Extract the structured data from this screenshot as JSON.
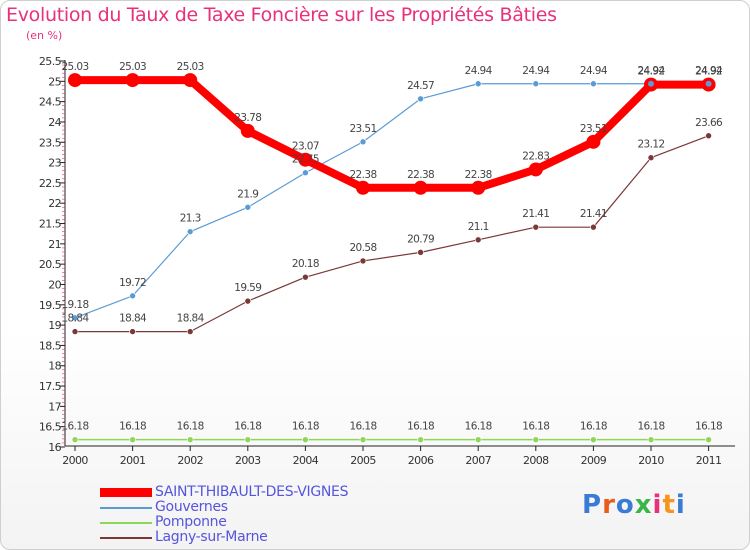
{
  "title": "Evolution du Taux de Taxe Foncière sur les Propriétés Bâties",
  "unit": "(en %)",
  "logo": {
    "text": "Proxiti",
    "colors": [
      "#3a7bd5",
      "#e85d1a",
      "#3a7bd5",
      "#39b54a",
      "#e8317a",
      "#f7941d",
      "#3a7bd5"
    ]
  },
  "chart_data": {
    "type": "line",
    "title": "Evolution du Taux de Taxe Foncière sur les Propriétés Bâties",
    "ylabel": "(en %)",
    "xlabel": "",
    "categories": [
      "2000",
      "2001",
      "2002",
      "2003",
      "2004",
      "2005",
      "2006",
      "2007",
      "2008",
      "2009",
      "2010",
      "2011"
    ],
    "ylim": [
      16,
      25.5
    ],
    "yticks": [
      "16",
      "16.5",
      "17",
      "17.5",
      "18",
      "18.5",
      "19",
      "19.5",
      "20",
      "20.5",
      "21",
      "21.5",
      "22",
      "22.5",
      "23",
      "23.5",
      "24",
      "24.5",
      "25",
      "25.5"
    ],
    "grid": false,
    "legend_position": "bottom-left",
    "series": [
      {
        "name": "SAINT-THIBAULT-DES-VIGNES",
        "color": "#ff0000",
        "values": [
          25.03,
          25.03,
          25.03,
          23.78,
          23.07,
          22.38,
          22.38,
          22.38,
          22.83,
          23.51,
          24.92,
          24.92
        ],
        "labels": [
          "25.03",
          "25.03",
          "25.03",
          "23.78",
          "23.07",
          "22.38",
          "22.38",
          "22.38",
          "22.83",
          "23.51",
          "24.92",
          "24.92"
        ]
      },
      {
        "name": "Gouvernes",
        "color": "#5b9bd5",
        "values": [
          19.18,
          19.72,
          21.3,
          21.9,
          22.75,
          23.51,
          24.57,
          24.94,
          24.94,
          24.94,
          24.94,
          24.94
        ],
        "labels": [
          "19.18",
          "19.72",
          "21.3",
          "21.9",
          "22.75",
          "23.51",
          "24.57",
          "24.94",
          "24.94",
          "24.94",
          "24.94",
          "24.94"
        ]
      },
      {
        "name": "Pomponne",
        "color": "#8ed657",
        "values": [
          16.18,
          16.18,
          16.18,
          16.18,
          16.18,
          16.18,
          16.18,
          16.18,
          16.18,
          16.18,
          16.18,
          16.18
        ],
        "labels": [
          "16.18",
          "16.18",
          "16.18",
          "16.18",
          "16.18",
          "16.18",
          "16.18",
          "16.18",
          "16.18",
          "16.18",
          "16.18",
          "16.18"
        ]
      },
      {
        "name": "Lagny-sur-Marne",
        "color": "#7a3838",
        "values": [
          18.84,
          18.84,
          18.84,
          19.59,
          20.18,
          20.58,
          20.79,
          21.1,
          21.41,
          21.41,
          23.12,
          23.66
        ],
        "labels": [
          "18.84",
          "18.84",
          "18.84",
          "19.59",
          "20.18",
          "20.58",
          "20.79",
          "21.1",
          "21.41",
          "21.41",
          "23.12",
          "23.66"
        ]
      }
    ]
  }
}
